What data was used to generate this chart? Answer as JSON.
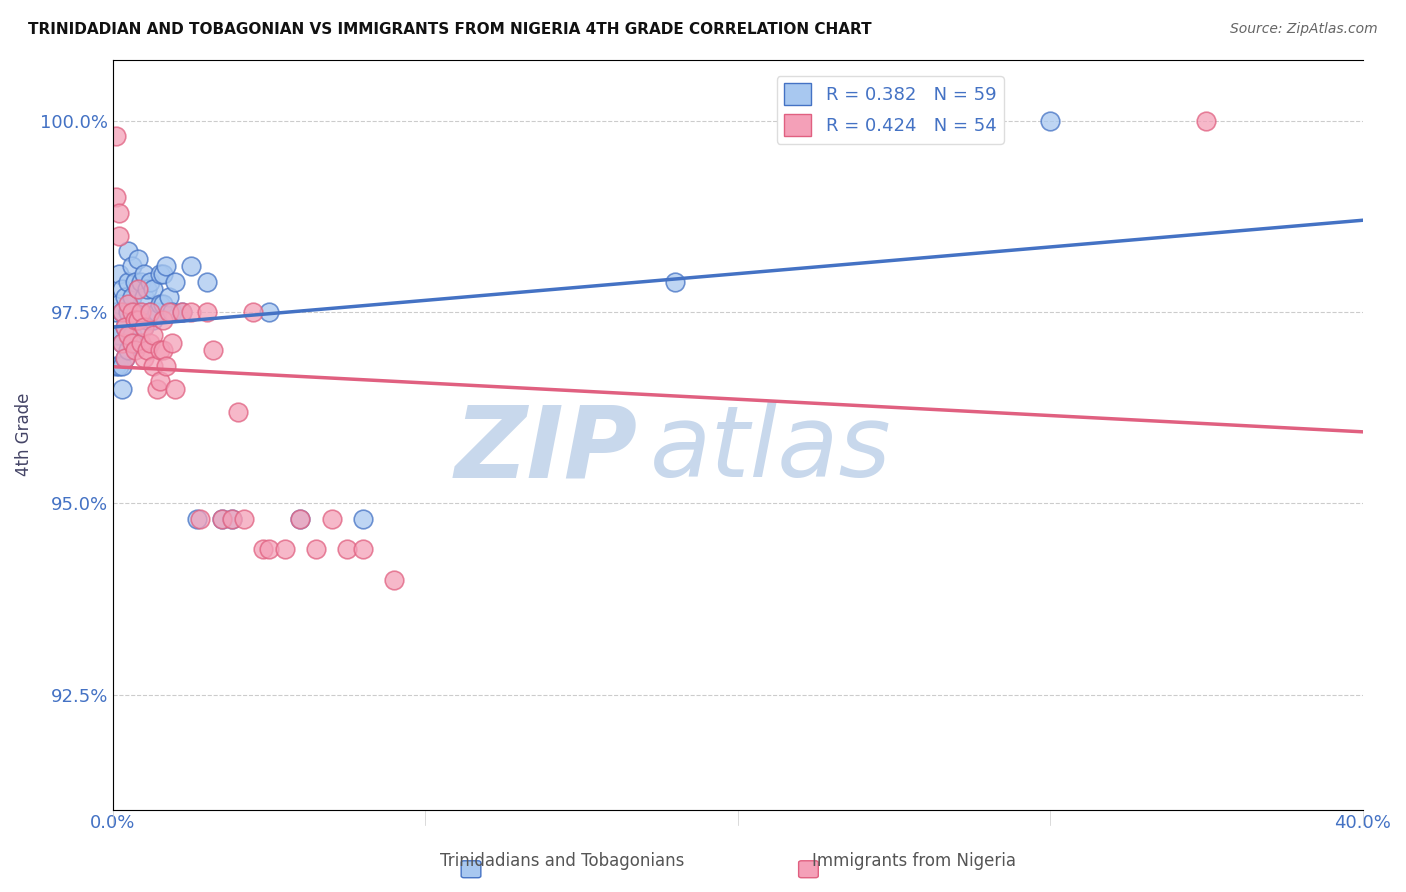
{
  "title": "TRINIDADIAN AND TOBAGONIAN VS IMMIGRANTS FROM NIGERIA 4TH GRADE CORRELATION CHART",
  "source": "Source: ZipAtlas.com",
  "ylabel": "4th Grade",
  "yaxis_labels": [
    "92.5%",
    "95.0%",
    "97.5%",
    "100.0%"
  ],
  "yaxis_values": [
    0.925,
    0.95,
    0.975,
    1.0
  ],
  "xaxis_range": [
    0.0,
    0.4
  ],
  "yaxis_range": [
    0.91,
    1.008
  ],
  "blue_color": "#A8C8F0",
  "pink_color": "#F4A0B8",
  "blue_line_color": "#4472C4",
  "pink_line_color": "#E06080",
  "legend_R_blue": "R = 0.382",
  "legend_N_blue": "N = 59",
  "legend_R_pink": "R = 0.424",
  "legend_N_pink": "N = 54",
  "blue_scatter_x": [
    0.001,
    0.001,
    0.001,
    0.002,
    0.002,
    0.002,
    0.002,
    0.003,
    0.003,
    0.003,
    0.003,
    0.003,
    0.004,
    0.004,
    0.004,
    0.005,
    0.005,
    0.005,
    0.005,
    0.006,
    0.006,
    0.006,
    0.007,
    0.007,
    0.007,
    0.008,
    0.008,
    0.008,
    0.009,
    0.009,
    0.01,
    0.01,
    0.01,
    0.011,
    0.011,
    0.012,
    0.012,
    0.013,
    0.013,
    0.014,
    0.015,
    0.015,
    0.016,
    0.016,
    0.017,
    0.018,
    0.019,
    0.02,
    0.022,
    0.025,
    0.027,
    0.03,
    0.035,
    0.038,
    0.05,
    0.06,
    0.08,
    0.18,
    0.3
  ],
  "blue_scatter_y": [
    0.975,
    0.972,
    0.968,
    0.98,
    0.976,
    0.972,
    0.968,
    0.978,
    0.975,
    0.971,
    0.968,
    0.965,
    0.977,
    0.973,
    0.969,
    0.983,
    0.979,
    0.975,
    0.97,
    0.981,
    0.977,
    0.972,
    0.979,
    0.975,
    0.971,
    0.982,
    0.978,
    0.974,
    0.979,
    0.975,
    0.98,
    0.977,
    0.973,
    0.978,
    0.974,
    0.979,
    0.975,
    0.978,
    0.974,
    0.975,
    0.98,
    0.976,
    0.98,
    0.976,
    0.981,
    0.977,
    0.975,
    0.979,
    0.975,
    0.981,
    0.948,
    0.979,
    0.948,
    0.948,
    0.975,
    0.948,
    0.948,
    0.979,
    1.0
  ],
  "pink_scatter_x": [
    0.001,
    0.001,
    0.002,
    0.002,
    0.003,
    0.003,
    0.004,
    0.004,
    0.005,
    0.005,
    0.006,
    0.006,
    0.007,
    0.007,
    0.008,
    0.008,
    0.009,
    0.009,
    0.01,
    0.01,
    0.011,
    0.012,
    0.012,
    0.013,
    0.013,
    0.014,
    0.015,
    0.015,
    0.016,
    0.016,
    0.017,
    0.018,
    0.019,
    0.02,
    0.022,
    0.025,
    0.028,
    0.03,
    0.032,
    0.035,
    0.038,
    0.04,
    0.042,
    0.045,
    0.048,
    0.05,
    0.055,
    0.06,
    0.065,
    0.07,
    0.075,
    0.08,
    0.09,
    0.35
  ],
  "pink_scatter_y": [
    0.998,
    0.99,
    0.988,
    0.985,
    0.975,
    0.971,
    0.973,
    0.969,
    0.976,
    0.972,
    0.975,
    0.971,
    0.974,
    0.97,
    0.978,
    0.974,
    0.975,
    0.971,
    0.973,
    0.969,
    0.97,
    0.975,
    0.971,
    0.972,
    0.968,
    0.965,
    0.97,
    0.966,
    0.974,
    0.97,
    0.968,
    0.975,
    0.971,
    0.965,
    0.975,
    0.975,
    0.948,
    0.975,
    0.97,
    0.948,
    0.948,
    0.962,
    0.948,
    0.975,
    0.944,
    0.944,
    0.944,
    0.948,
    0.944,
    0.948,
    0.944,
    0.944,
    0.94,
    1.0
  ],
  "watermark_zip": "ZIP",
  "watermark_atlas": "atlas",
  "watermark_color_zip": "#C8D8EC",
  "watermark_color_atlas": "#C8D8EC"
}
